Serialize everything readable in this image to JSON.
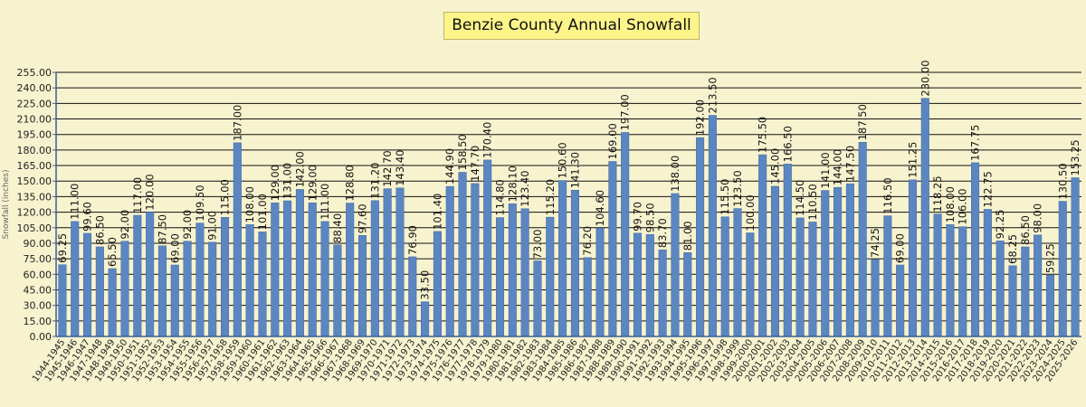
{
  "chart_data": {
    "type": "bar",
    "title": "Benzie County Annual Snowfall",
    "ylabel": "Snowfall (inches)",
    "ylim": [
      0,
      255
    ],
    "ytick_step": 15,
    "grid": true,
    "bar_color": "#5b86c1",
    "categories": [
      "1944-1945",
      "1945-1946",
      "1946-1947",
      "1947-1948",
      "1948-1949",
      "1949-1950",
      "1950-1951",
      "1951-1952",
      "1952-1953",
      "1953-1954",
      "1954-1955",
      "1955-1956",
      "1956-1957",
      "1957-1958",
      "1958-1959",
      "1959-1960",
      "1960-1961",
      "1961-1962",
      "1962-1963",
      "1963-1964",
      "1964-1965",
      "1965-1966",
      "1966-1967",
      "1967-1968",
      "1968-1969",
      "1969-1970",
      "1970-1971",
      "1971-1972",
      "1972-1973",
      "1973-1974",
      "1974-1975",
      "1975-1976",
      "1976-1977",
      "1977-1978",
      "1978-1979",
      "1979-1980",
      "1980-1981",
      "1981-1982",
      "1982-1983",
      "1983-1984",
      "1984-1985",
      "1985-1986",
      "1986-1987",
      "1987-1988",
      "1988-1989",
      "1989-1990",
      "1990-1991",
      "1991-1992",
      "1992-1993",
      "1993-1994",
      "1994-1995",
      "1995-1996",
      "1996-1997",
      "1997-1998",
      "1998-1999",
      "1999-2000",
      "2000-2001",
      "2001-2002",
      "2002-2003",
      "2003-2004",
      "2004-2005",
      "2005-2006",
      "2006-2007",
      "2007-2008",
      "2008-2009",
      "2009-2010",
      "2010-2011",
      "2011-2012",
      "2012-2013",
      "2013-2014",
      "2014-2015",
      "2015-2016",
      "2016-2017",
      "2017-2018",
      "2018-2019",
      "2019-2020",
      "2020-2021",
      "2021-2022",
      "2022-2023",
      "2023-2024",
      "2024-2025",
      "2025-2026"
    ],
    "values": [
      69.25,
      111.0,
      99.6,
      86.5,
      65.5,
      92.0,
      117.0,
      120.0,
      87.5,
      69.0,
      92.0,
      109.5,
      91.0,
      115.0,
      187.0,
      108.0,
      101.0,
      129.0,
      131.0,
      142.0,
      129.0,
      111.0,
      88.4,
      128.8,
      97.6,
      131.2,
      142.7,
      143.4,
      76.9,
      33.5,
      101.4,
      144.9,
      158.5,
      147.7,
      170.4,
      114.8,
      128.1,
      123.4,
      73.0,
      115.2,
      150.6,
      141.3,
      76.2,
      104.6,
      169.0,
      197.0,
      99.7,
      98.5,
      83.7,
      138.0,
      81.0,
      192.0,
      213.5,
      115.5,
      123.5,
      100.0,
      175.5,
      145.0,
      166.5,
      114.5,
      110.5,
      141.0,
      144.0,
      147.5,
      187.5,
      74.25,
      116.5,
      69.0,
      151.25,
      230.0,
      118.25,
      108.0,
      106.0,
      167.75,
      122.75,
      92.25,
      68.25,
      86.5,
      98.0,
      59.25,
      130.5,
      153.25
    ],
    "data_labels": [
      "69.25",
      "111.00",
      "99.60",
      "86.50",
      "65.50",
      "92.00",
      "117.00",
      "120.00",
      "87.50",
      "69.00",
      "92.00",
      "109.50",
      "91.00",
      "115.00",
      "187.00",
      "108.00",
      "101.00",
      "129.00",
      "131.00",
      "142.00",
      "129.00",
      "111.00",
      "88.40",
      "128.80",
      "97.60",
      "131.20",
      "142.70",
      "143.40",
      "76.90",
      "33.50",
      "101.40",
      "144.90",
      "158.50",
      "147.70",
      "170.40",
      "114.80",
      "128.10",
      "123.40",
      "73.00",
      "115.20",
      "150.60",
      "141.30",
      "76.20",
      "104.60",
      "169.00",
      "197.00",
      "99.70",
      "98.50",
      "83.70",
      "138.00",
      "81.00",
      "192.00",
      "213.50",
      "115.50",
      "123.50",
      "100.00",
      "175.50",
      "145.00",
      "166.50",
      "114.50",
      "110.50",
      "141.00",
      "144.00",
      "147.50",
      "187.50",
      "74.25",
      "116.50",
      "69.00",
      "151.25",
      "230.00",
      "118.25",
      "108.00",
      "106.00",
      "167.75",
      "122.75",
      "92.25",
      "68.25",
      "86.50",
      "98.00",
      "59.25",
      "130.50",
      "153.25"
    ],
    "y_ticks": [
      "0.00",
      "15.00",
      "30.00",
      "45.00",
      "60.00",
      "75.00",
      "90.00",
      "105.00",
      "120.00",
      "135.00",
      "150.00",
      "165.00",
      "180.00",
      "195.00",
      "210.00",
      "225.00",
      "240.00",
      "255.00"
    ]
  }
}
